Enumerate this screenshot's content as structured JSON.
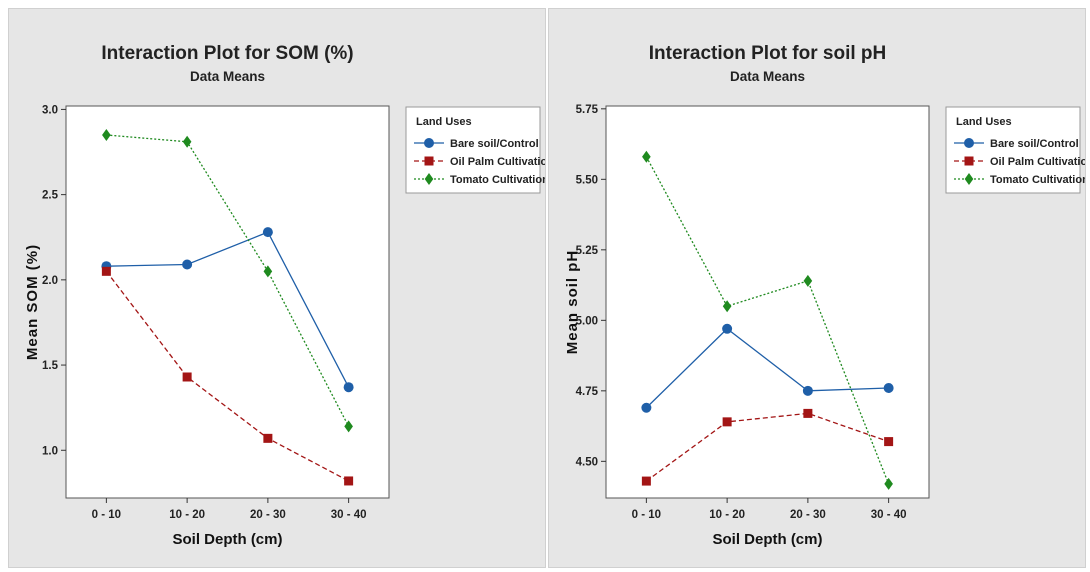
{
  "colors": {
    "panel_bg": "#e6e6e6",
    "plot_bg": "#ffffff",
    "series": [
      "#1f5fa8",
      "#a31515",
      "#1f8a1f"
    ]
  },
  "chart_data": [
    {
      "type": "line",
      "title": "Interaction Plot for SOM (%)",
      "subtitle": "Data Means",
      "xlabel": "Soil Depth (cm)",
      "ylabel": "Mean SOM (%)",
      "categories": [
        "0 - 10",
        "10 - 20",
        "20 - 30",
        "30 - 40"
      ],
      "ylim": [
        0.72,
        3.02
      ],
      "yticks": [
        1.0,
        1.5,
        2.0,
        2.5,
        3.0
      ],
      "ytick_labels": [
        "1.0",
        "1.5",
        "2.0",
        "2.5",
        "3.0"
      ],
      "legend_title": "Land Uses",
      "legend_position": "right",
      "series": [
        {
          "name": "Bare soil/Control",
          "marker": "circle",
          "dash": "solid",
          "values": [
            2.08,
            2.09,
            2.28,
            1.37
          ]
        },
        {
          "name": "Oil Palm Cultivation",
          "marker": "square",
          "dash": "dashed",
          "values": [
            2.05,
            1.43,
            1.07,
            0.82
          ]
        },
        {
          "name": "Tomato Cultivation",
          "marker": "diamond",
          "dash": "dotted",
          "values": [
            2.85,
            2.81,
            2.05,
            1.14
          ]
        }
      ]
    },
    {
      "type": "line",
      "title": "Interaction Plot for soil pH",
      "subtitle": "Data Means",
      "xlabel": "Soil Depth (cm)",
      "ylabel": "Mean soil pH",
      "categories": [
        "0 - 10",
        "10 - 20",
        "20 - 30",
        "30 - 40"
      ],
      "ylim": [
        4.37,
        5.76
      ],
      "yticks": [
        4.5,
        4.75,
        5.0,
        5.25,
        5.5,
        5.75
      ],
      "ytick_labels": [
        "4.50",
        "4.75",
        "5.00",
        "5.25",
        "5.50",
        "5.75"
      ],
      "legend_title": "Land Uses",
      "legend_position": "right",
      "series": [
        {
          "name": "Bare soil/Control",
          "marker": "circle",
          "dash": "solid",
          "values": [
            4.69,
            4.97,
            4.75,
            4.76
          ]
        },
        {
          "name": "Oil Palm Cultivation",
          "marker": "square",
          "dash": "dashed",
          "values": [
            4.43,
            4.64,
            4.67,
            4.57
          ]
        },
        {
          "name": "Tomato Cultivation",
          "marker": "diamond",
          "dash": "dotted",
          "values": [
            5.58,
            5.05,
            5.14,
            4.42
          ]
        }
      ]
    }
  ]
}
